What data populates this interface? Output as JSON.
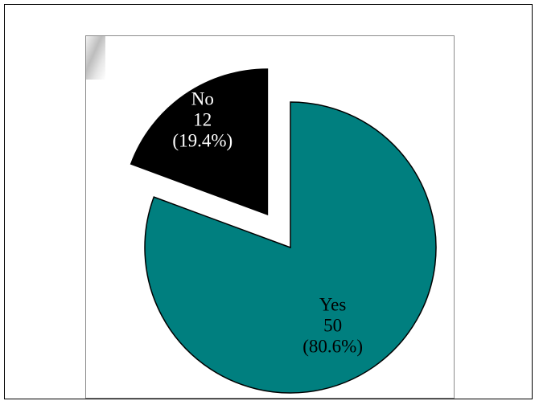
{
  "chart_data": {
    "type": "pie",
    "exploded": true,
    "title": "",
    "slices": [
      {
        "label": "No",
        "value": 12,
        "percent_label": "(19.4%)",
        "value_label": "12",
        "color": "#000000",
        "text_color": "#ffffff"
      },
      {
        "label": "Yes",
        "value": 50,
        "percent_label": "(80.6%)",
        "value_label": "50",
        "color": "#007f7f",
        "text_color": "#000000"
      }
    ],
    "legend": "none",
    "grid": false
  }
}
